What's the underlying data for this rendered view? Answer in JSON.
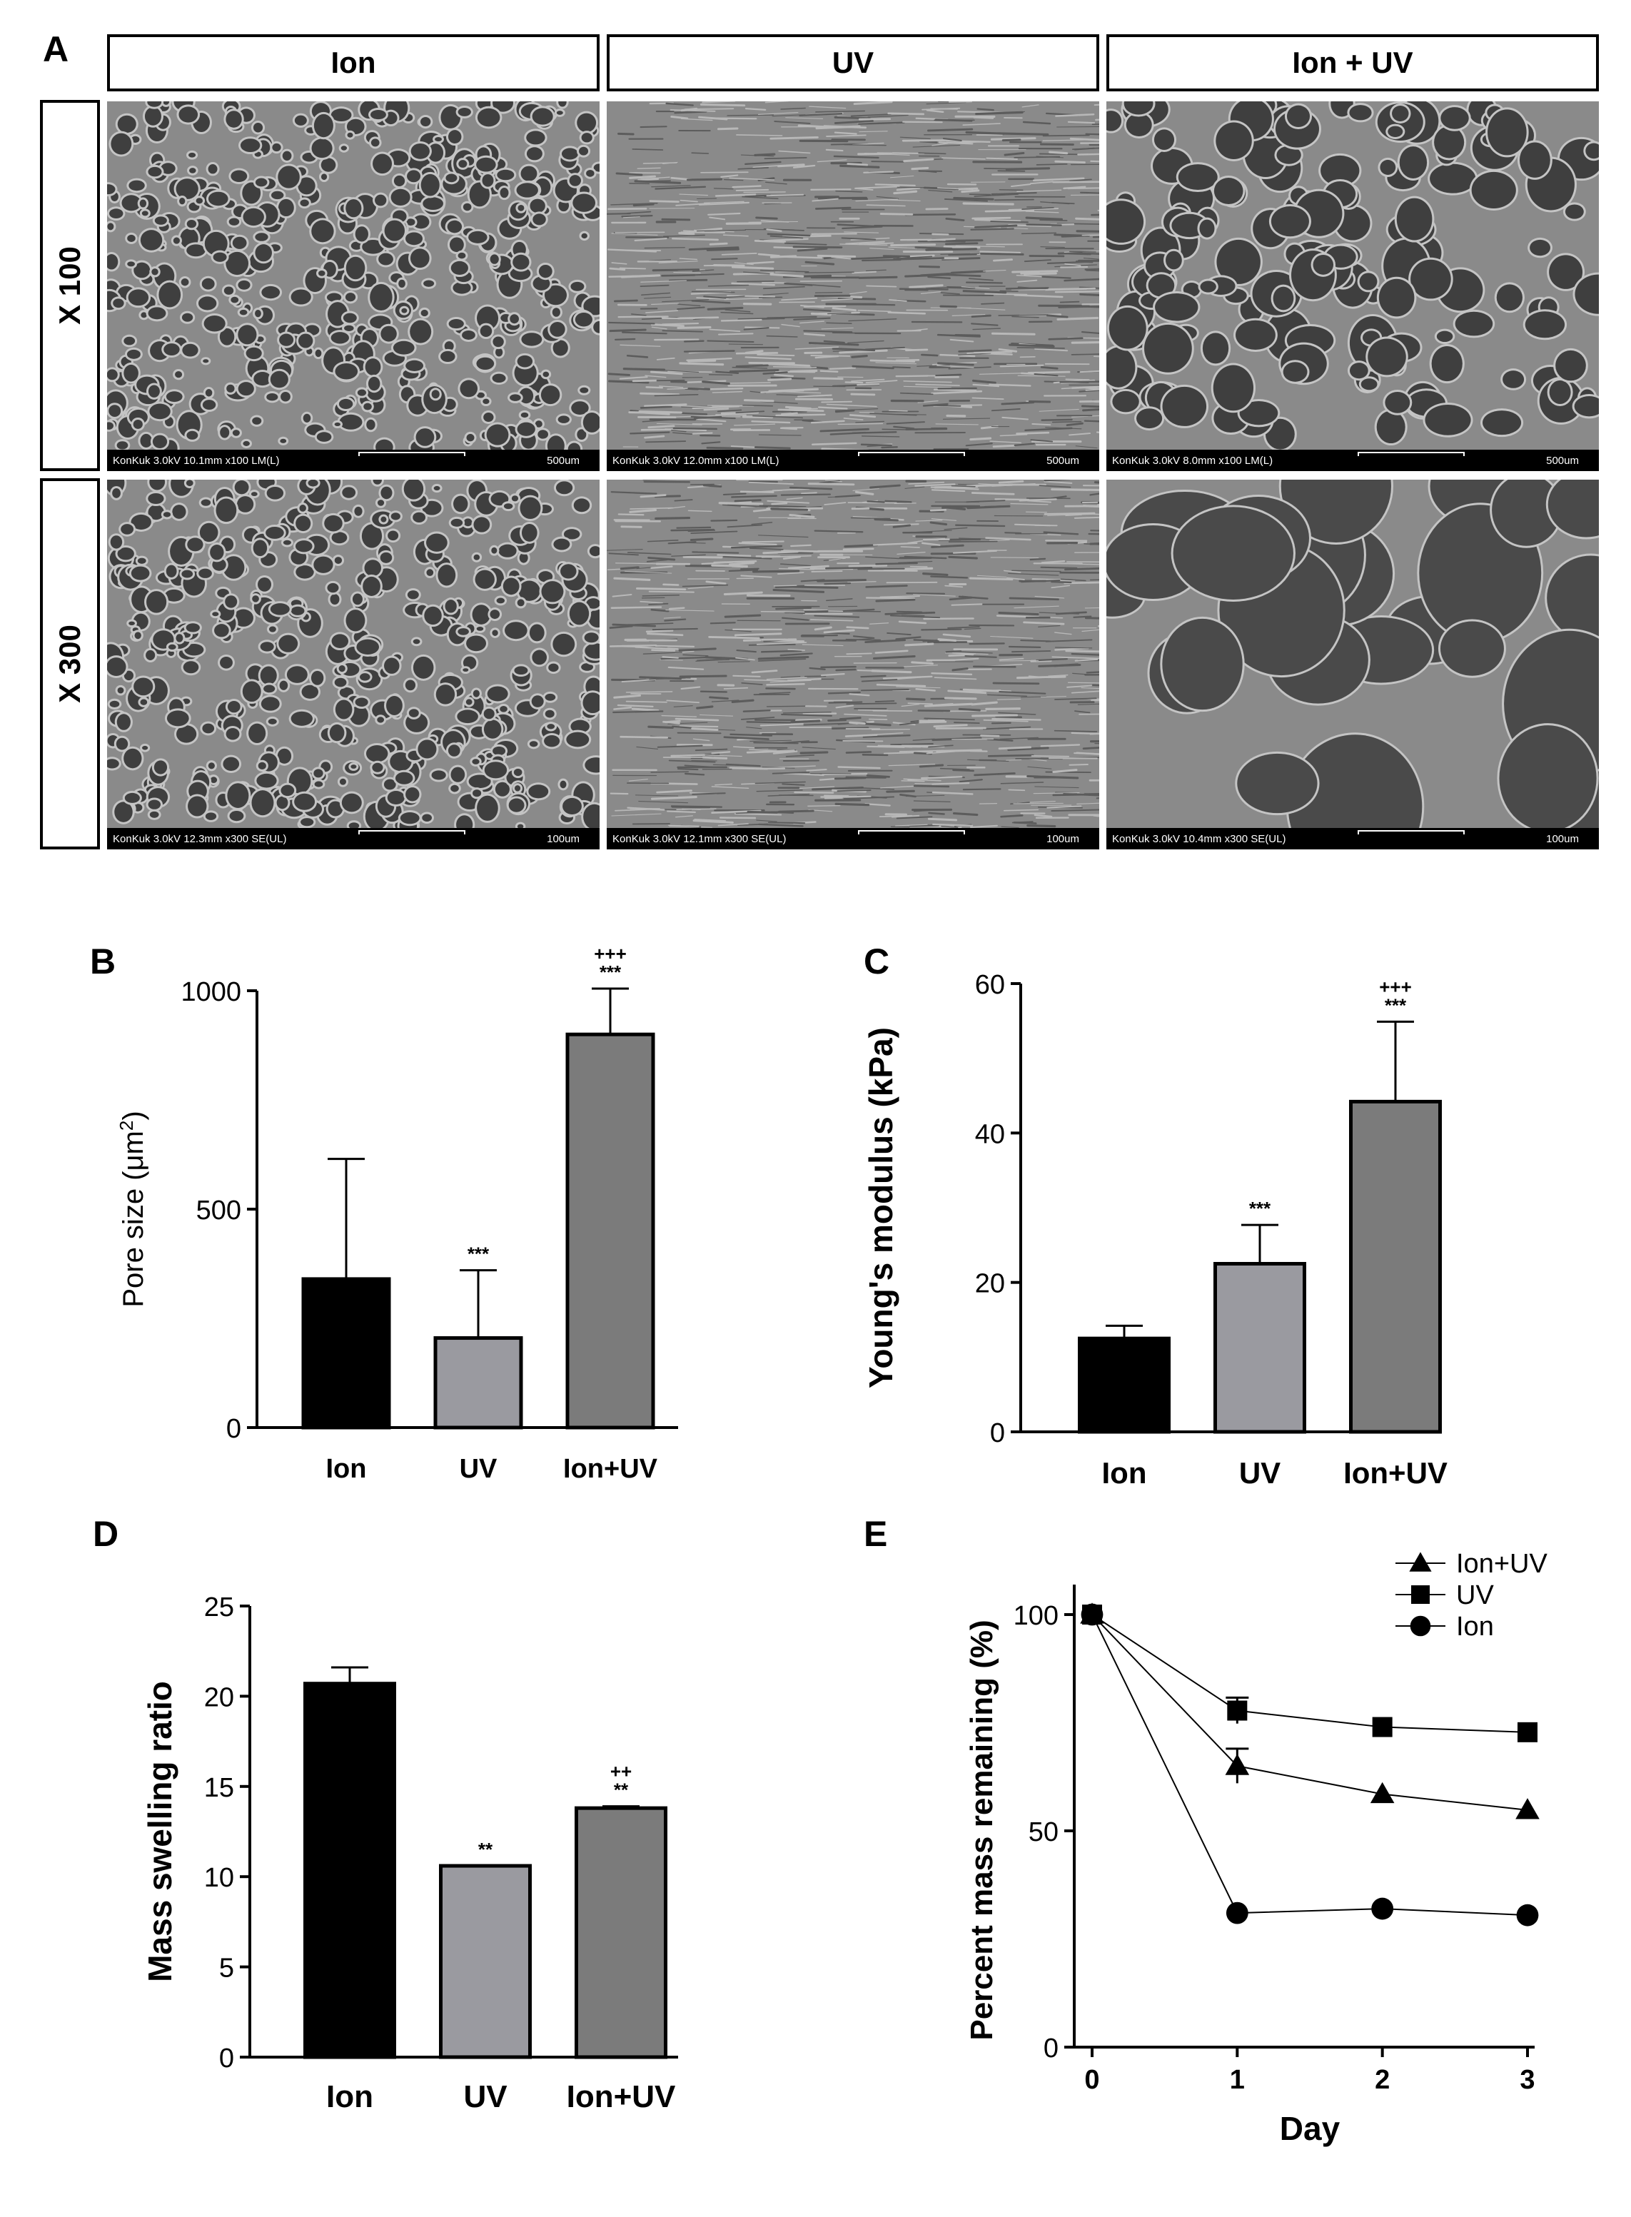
{
  "panel_a": {
    "letter": "A",
    "column_headers": [
      "Ion",
      "UV",
      "Ion + UV"
    ],
    "row_headers": [
      "X 100",
      "X 300"
    ],
    "images": [
      {
        "params": "KonKuk 3.0kV 10.1mm x100 LM(L)",
        "scale": "500um",
        "texture": "dense"
      },
      {
        "params": "KonKuk 3.0kV 12.0mm x100 LM(L)",
        "scale": "500um",
        "texture": "striated"
      },
      {
        "params": "KonKuk 3.0kV 8.0mm x100 LM(L)",
        "scale": "500um",
        "texture": "porous"
      },
      {
        "params": "KonKuk 3.0kV 12.3mm x300 SE(UL)",
        "scale": "100um",
        "texture": "dense"
      },
      {
        "params": "KonKuk 3.0kV 12.1mm x300 SE(UL)",
        "scale": "100um",
        "texture": "striated"
      },
      {
        "params": "KonKuk 3.0kV 10.4mm x300 SE(UL)",
        "scale": "100um",
        "texture": "large-pores"
      }
    ]
  },
  "chart_data": [
    {
      "letter": "B",
      "type": "bar",
      "categories": [
        "Ion",
        "UV",
        "Ion+UV"
      ],
      "values": [
        340,
        205,
        900
      ],
      "errors": [
        275,
        155,
        105
      ],
      "colors": [
        "#000000",
        "#9a9aa0",
        "#7b7b7b"
      ],
      "annotations": [
        [],
        [
          "***"
        ],
        [
          "***",
          "+++"
        ]
      ],
      "ylabel": "Pore size (μm",
      "ylabel_sup": "2",
      "ylabel_end": ")",
      "ylim": [
        0,
        1000
      ],
      "yticks": [
        0,
        500,
        1000
      ]
    },
    {
      "letter": "C",
      "type": "bar",
      "categories": [
        "Ion",
        "UV",
        "Ion+UV"
      ],
      "values": [
        12.5,
        22.5,
        44.2
      ],
      "errors": [
        1.7,
        5.2,
        10.7
      ],
      "colors": [
        "#000000",
        "#9a9aa0",
        "#7b7b7b"
      ],
      "annotations": [
        [],
        [
          "***"
        ],
        [
          "***",
          "+++"
        ]
      ],
      "ylabel": "Young's modulus (kPa)",
      "ylim": [
        0,
        60
      ],
      "yticks": [
        0,
        20,
        40,
        60
      ]
    },
    {
      "letter": "D",
      "type": "bar",
      "categories": [
        "Ion",
        "UV",
        "Ion+UV"
      ],
      "values": [
        20.7,
        10.6,
        13.8
      ],
      "errors": [
        0.9,
        0.0,
        0.1
      ],
      "colors": [
        "#000000",
        "#9a9aa0",
        "#7b7b7b"
      ],
      "annotations": [
        [],
        [
          "**"
        ],
        [
          "**",
          "++"
        ]
      ],
      "ylabel": "Mass swelling ratio",
      "ylim": [
        0,
        25
      ],
      "yticks": [
        0,
        5,
        10,
        15,
        20,
        25
      ]
    },
    {
      "letter": "E",
      "type": "line",
      "x": [
        0,
        1,
        2,
        3
      ],
      "xlabel": "Day",
      "ylabel": "Percent mass remaining (%)",
      "ylim": [
        0,
        100
      ],
      "yticks": [
        0,
        50,
        100
      ],
      "xticks": [
        0,
        1,
        2,
        3
      ],
      "legend_position": "top-right",
      "series": [
        {
          "name": "Ion+UV",
          "marker": "triangle",
          "values": [
            100,
            65,
            58.5,
            54.8
          ],
          "errors": [
            0,
            4,
            1,
            1
          ]
        },
        {
          "name": "UV",
          "marker": "square",
          "values": [
            100,
            77.8,
            74,
            72.8
          ],
          "errors": [
            0,
            3,
            0.5,
            0.5
          ]
        },
        {
          "name": "Ion",
          "marker": "circle",
          "values": [
            100,
            31,
            32,
            30.5
          ],
          "errors": [
            0,
            0.5,
            0.5,
            0.5
          ]
        }
      ]
    }
  ]
}
